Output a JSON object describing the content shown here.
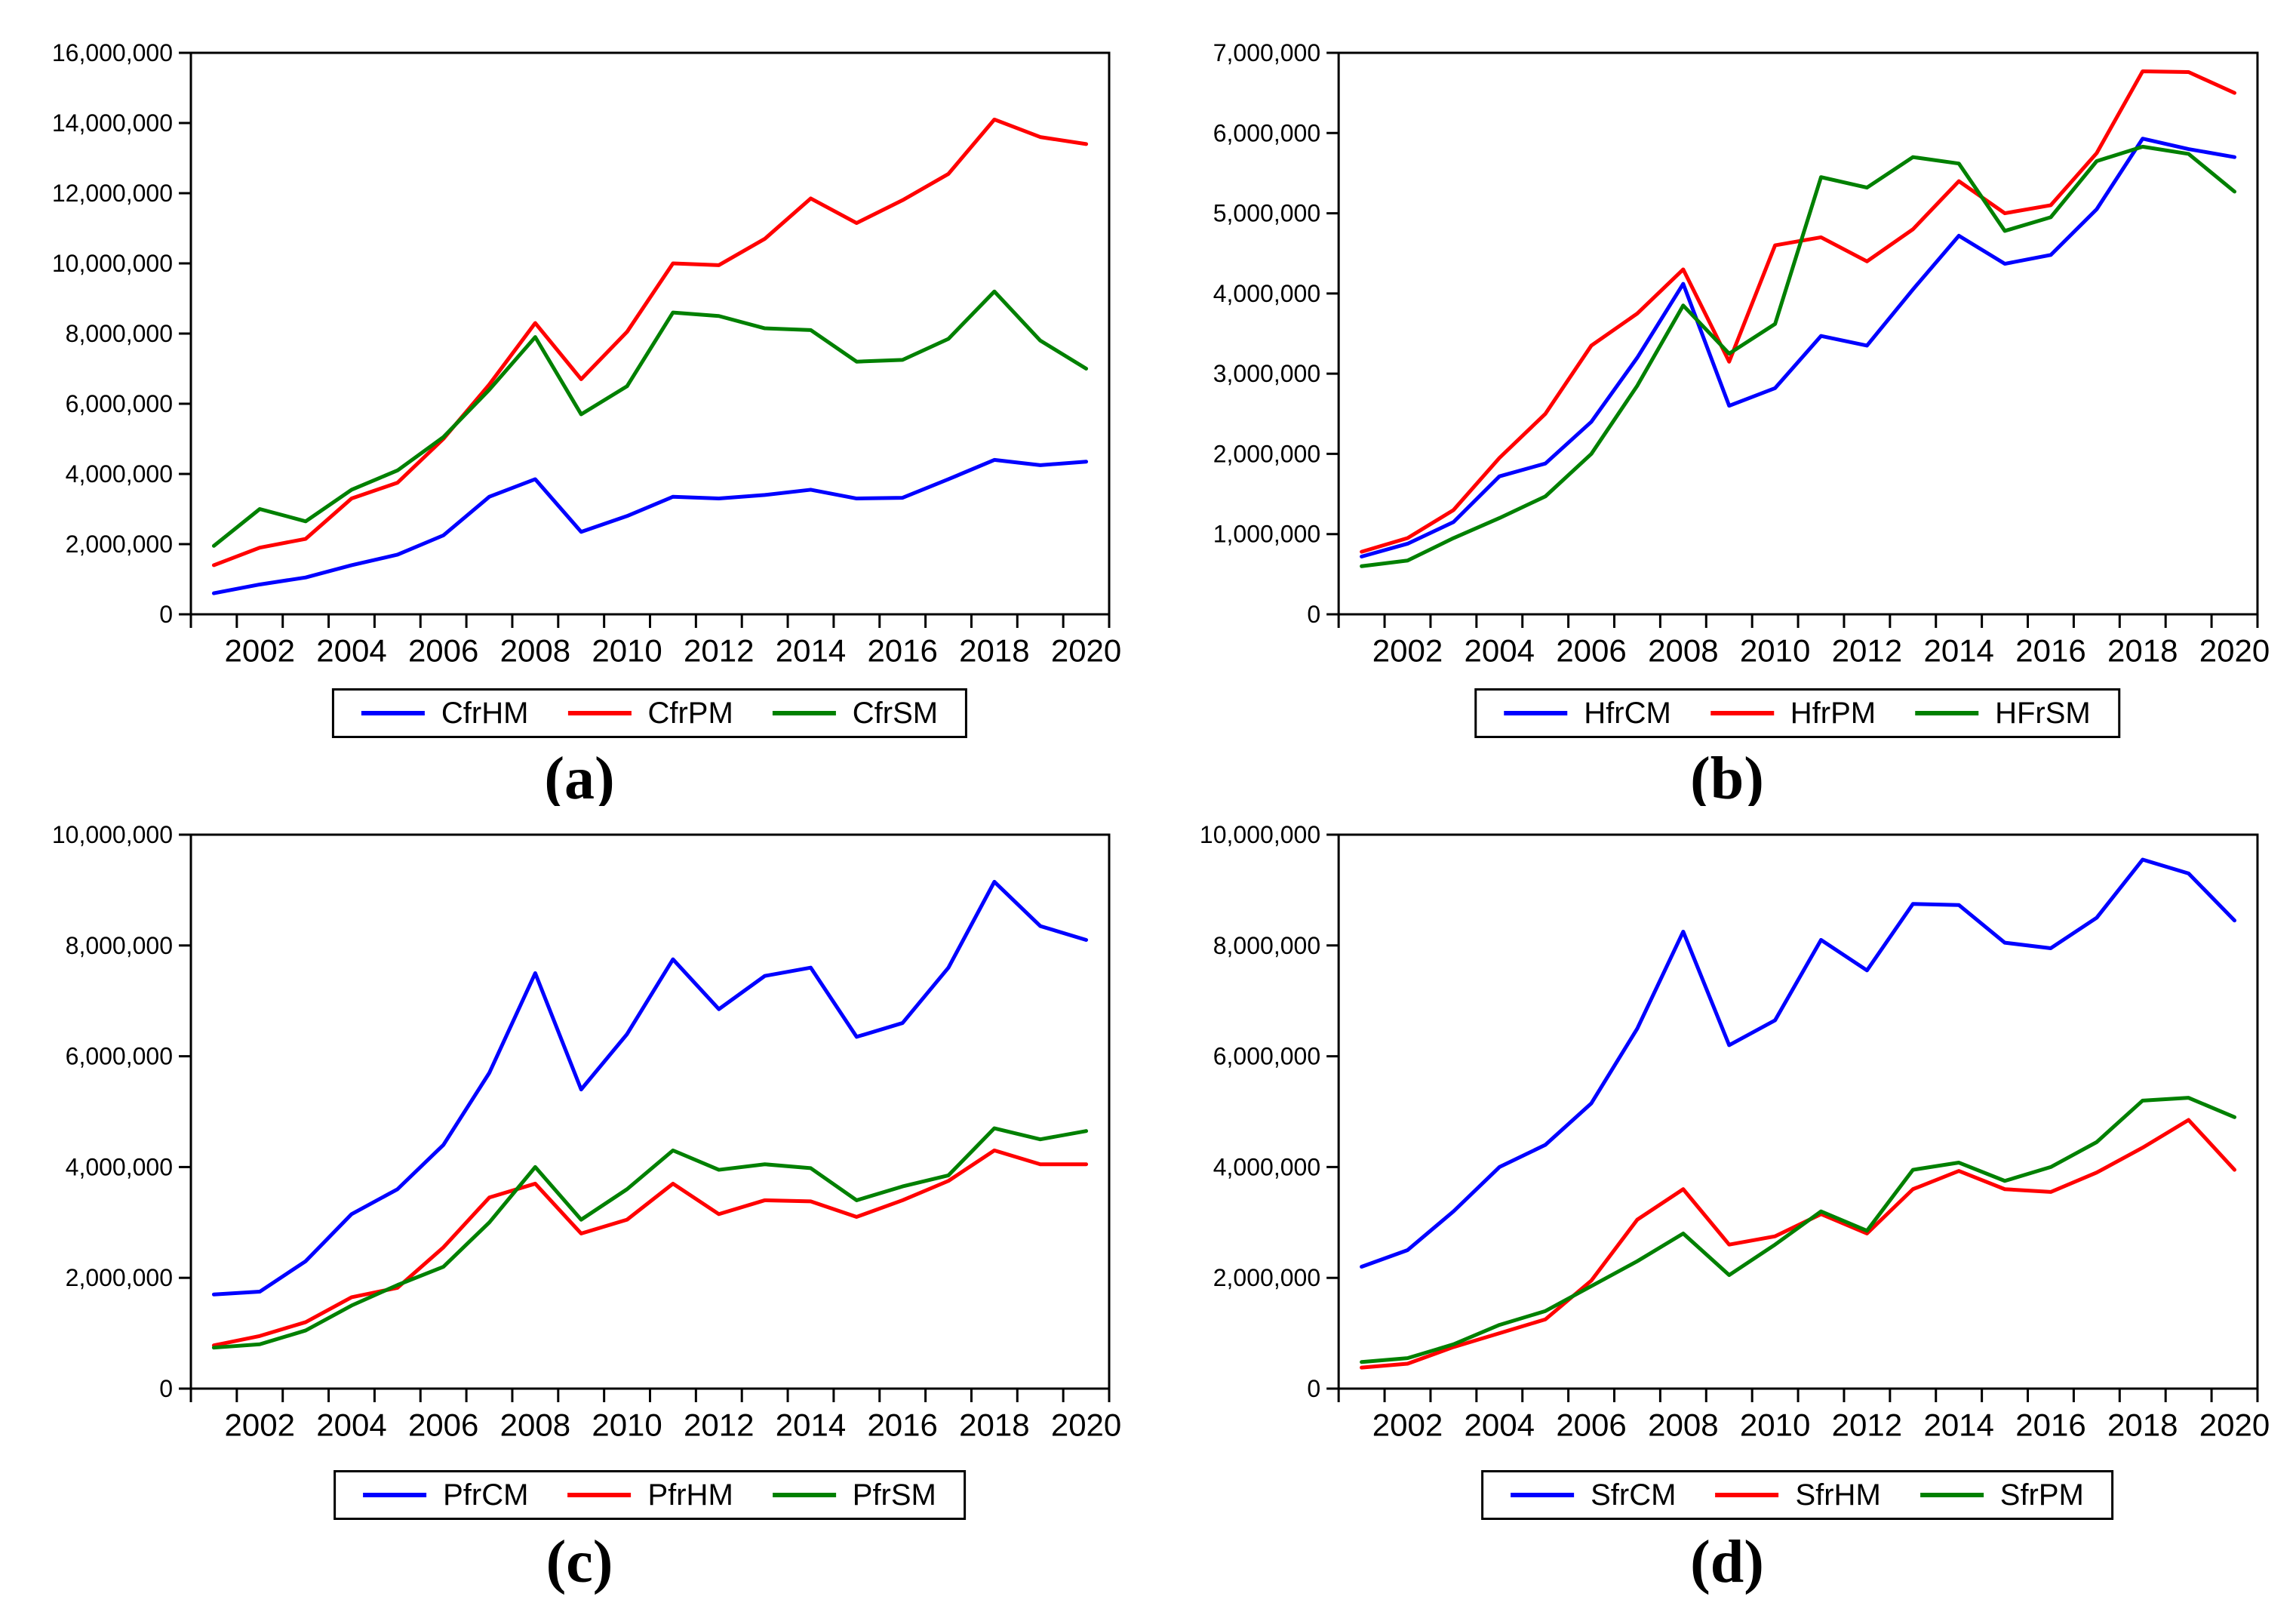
{
  "figure": {
    "background_color": "#ffffff",
    "axis_color": "#000000",
    "text_color": "#000000",
    "series_palette": {
      "blue": "#0000ff",
      "red": "#ff0000",
      "green": "#008000"
    }
  },
  "chart_data": [
    {
      "type": "line",
      "panel": "a",
      "caption": "(a)",
      "title": "",
      "xlabel": "",
      "ylabel": "",
      "grid": false,
      "legend_position": "bottom",
      "x": [
        2001,
        2002,
        2003,
        2004,
        2005,
        2006,
        2007,
        2008,
        2009,
        2010,
        2011,
        2012,
        2013,
        2014,
        2015,
        2016,
        2017,
        2018,
        2019,
        2020
      ],
      "x_tick_labels": [
        "2002",
        "2004",
        "2006",
        "2008",
        "2010",
        "2012",
        "2014",
        "2016",
        "2018",
        "2020"
      ],
      "ylim": [
        0,
        16000000
      ],
      "y_tick_step": 2000000,
      "series": [
        {
          "name": "CfrHM",
          "color": "#0000ff",
          "values": [
            600000,
            850000,
            1050000,
            1400000,
            1700000,
            2250000,
            3350000,
            3850000,
            2350000,
            2800000,
            3350000,
            3300000,
            3400000,
            3550000,
            3300000,
            3320000,
            3850000,
            4400000,
            4250000,
            4350000
          ]
        },
        {
          "name": "CfrPM",
          "color": "#ff0000",
          "values": [
            1400000,
            1900000,
            2150000,
            3300000,
            3750000,
            5000000,
            6550000,
            8300000,
            6700000,
            8050000,
            10000000,
            9950000,
            10700000,
            11850000,
            11150000,
            11800000,
            12550000,
            14100000,
            13600000,
            13400000
          ]
        },
        {
          "name": "CfrSM",
          "color": "#008000",
          "values": [
            1950000,
            3000000,
            2650000,
            3550000,
            4100000,
            5050000,
            6400000,
            7900000,
            5700000,
            6500000,
            8600000,
            8500000,
            8150000,
            8100000,
            7200000,
            7250000,
            7850000,
            9200000,
            7800000,
            7000000
          ]
        }
      ]
    },
    {
      "type": "line",
      "panel": "b",
      "caption": "(b)",
      "title": "",
      "xlabel": "",
      "ylabel": "",
      "grid": false,
      "legend_position": "bottom",
      "x": [
        2001,
        2002,
        2003,
        2004,
        2005,
        2006,
        2007,
        2008,
        2009,
        2010,
        2011,
        2012,
        2013,
        2014,
        2015,
        2016,
        2017,
        2018,
        2019,
        2020
      ],
      "x_tick_labels": [
        "2002",
        "2004",
        "2006",
        "2008",
        "2010",
        "2012",
        "2014",
        "2016",
        "2018",
        "2020"
      ],
      "ylim": [
        0,
        7000000
      ],
      "y_tick_step": 1000000,
      "series": [
        {
          "name": "HfrCM",
          "color": "#0000ff",
          "values": [
            720000,
            880000,
            1150000,
            1720000,
            1880000,
            2400000,
            3200000,
            4120000,
            2600000,
            2820000,
            3470000,
            3350000,
            4050000,
            4720000,
            4370000,
            4480000,
            5050000,
            5930000,
            5800000,
            5700000
          ]
        },
        {
          "name": "HfrPM",
          "color": "#ff0000",
          "values": [
            780000,
            950000,
            1300000,
            1950000,
            2500000,
            3350000,
            3750000,
            4300000,
            3150000,
            4600000,
            4700000,
            4400000,
            4800000,
            5400000,
            5000000,
            5100000,
            5750000,
            6770000,
            6760000,
            6500000
          ]
        },
        {
          "name": "HFrSM",
          "color": "#008000",
          "values": [
            600000,
            670000,
            950000,
            1200000,
            1470000,
            2000000,
            2850000,
            3850000,
            3250000,
            3620000,
            5450000,
            5320000,
            5700000,
            5620000,
            4780000,
            4950000,
            5650000,
            5830000,
            5740000,
            5270000
          ]
        }
      ]
    },
    {
      "type": "line",
      "panel": "c",
      "caption": "(c)",
      "title": "",
      "xlabel": "",
      "ylabel": "",
      "grid": false,
      "legend_position": "bottom",
      "x": [
        2001,
        2002,
        2003,
        2004,
        2005,
        2006,
        2007,
        2008,
        2009,
        2010,
        2011,
        2012,
        2013,
        2014,
        2015,
        2016,
        2017,
        2018,
        2019,
        2020
      ],
      "x_tick_labels": [
        "2002",
        "2004",
        "2006",
        "2008",
        "2010",
        "2012",
        "2014",
        "2016",
        "2018",
        "2020"
      ],
      "ylim": [
        0,
        10000000
      ],
      "y_tick_step": 2000000,
      "series": [
        {
          "name": "PfrCM",
          "color": "#0000ff",
          "values": [
            1700000,
            1750000,
            2300000,
            3150000,
            3600000,
            4400000,
            5700000,
            7500000,
            5400000,
            6400000,
            7750000,
            6850000,
            7450000,
            7600000,
            6350000,
            6600000,
            7600000,
            9150000,
            8350000,
            8100000
          ]
        },
        {
          "name": "PfrHM",
          "color": "#ff0000",
          "values": [
            780000,
            950000,
            1200000,
            1650000,
            1820000,
            2550000,
            3450000,
            3700000,
            2800000,
            3050000,
            3700000,
            3150000,
            3400000,
            3380000,
            3100000,
            3400000,
            3750000,
            4300000,
            4050000,
            4050000
          ]
        },
        {
          "name": "PfrSM",
          "color": "#008000",
          "values": [
            740000,
            800000,
            1050000,
            1500000,
            1870000,
            2200000,
            3000000,
            4000000,
            3050000,
            3600000,
            4300000,
            3950000,
            4050000,
            3980000,
            3400000,
            3650000,
            3850000,
            4700000,
            4500000,
            4650000
          ]
        }
      ]
    },
    {
      "type": "line",
      "panel": "d",
      "caption": "(d)",
      "title": "",
      "xlabel": "",
      "ylabel": "",
      "grid": false,
      "legend_position": "bottom",
      "x": [
        2001,
        2002,
        2003,
        2004,
        2005,
        2006,
        2007,
        2008,
        2009,
        2010,
        2011,
        2012,
        2013,
        2014,
        2015,
        2016,
        2017,
        2018,
        2019,
        2020
      ],
      "x_tick_labels": [
        "2002",
        "2004",
        "2006",
        "2008",
        "2010",
        "2012",
        "2014",
        "2016",
        "2018",
        "2020"
      ],
      "ylim": [
        0,
        10000000
      ],
      "y_tick_step": 2000000,
      "series": [
        {
          "name": "SfrCM",
          "color": "#0000ff",
          "values": [
            2200000,
            2500000,
            3200000,
            4000000,
            4400000,
            5150000,
            6500000,
            8250000,
            6200000,
            6650000,
            8100000,
            7550000,
            8750000,
            8730000,
            8050000,
            7950000,
            8500000,
            9550000,
            9300000,
            8450000
          ]
        },
        {
          "name": "SfrHM",
          "color": "#ff0000",
          "values": [
            380000,
            450000,
            750000,
            1000000,
            1250000,
            1950000,
            3050000,
            3600000,
            2600000,
            2750000,
            3150000,
            2800000,
            3600000,
            3930000,
            3600000,
            3550000,
            3900000,
            4350000,
            4850000,
            3950000
          ]
        },
        {
          "name": "SfrPM",
          "color": "#008000",
          "values": [
            480000,
            550000,
            800000,
            1150000,
            1400000,
            1850000,
            2300000,
            2800000,
            2050000,
            2600000,
            3200000,
            2850000,
            3950000,
            4080000,
            3750000,
            4000000,
            4450000,
            5200000,
            5250000,
            4900000
          ]
        }
      ]
    }
  ]
}
